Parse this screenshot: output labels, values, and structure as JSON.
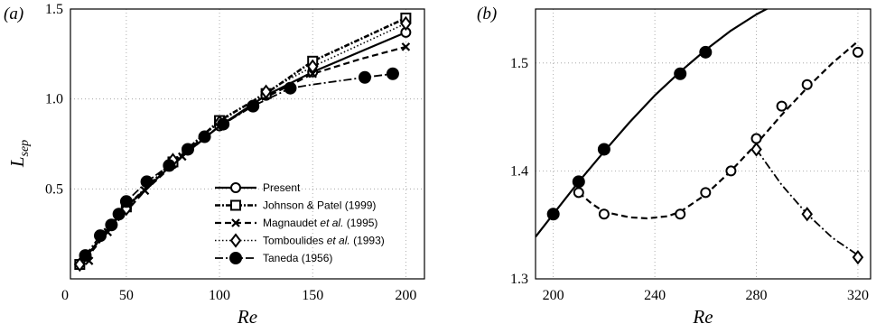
{
  "chart_data": [
    {
      "type": "line",
      "panel_label": "(a)",
      "xlabel": "Re",
      "ylabel": "L",
      "ylabel_sub": "sep",
      "xlim": [
        20,
        210
      ],
      "ylim": [
        0,
        1.5
      ],
      "xticks": [
        0,
        50,
        100,
        150,
        200
      ],
      "yticks": [
        0.5,
        1.0,
        1.5
      ],
      "ytick_labels": [
        "0.5",
        "1.0",
        "1.5"
      ],
      "grid": true,
      "legend_position": "lower-right",
      "series": [
        {
          "name": "Present",
          "style": "solid",
          "marker": "open-circle",
          "x": [
            25,
            50,
            75,
            100,
            125,
            150,
            200
          ],
          "y": [
            0.08,
            0.4,
            0.64,
            0.85,
            1.02,
            1.15,
            1.37
          ],
          "curve_x": [
            25,
            50,
            75,
            100,
            125,
            150,
            175,
            200
          ],
          "curve_y": [
            0.08,
            0.4,
            0.64,
            0.85,
            1.02,
            1.15,
            1.26,
            1.37
          ]
        },
        {
          "name": "Johnson & Patel (1999)",
          "style": "dashdot-heavy",
          "marker": "open-square",
          "x": [
            25,
            50,
            75,
            100,
            125,
            150,
            200
          ],
          "y": [
            0.08,
            0.4,
            0.65,
            0.88,
            1.03,
            1.21,
            1.45
          ],
          "curve_x": [
            25,
            50,
            75,
            100,
            125,
            150,
            175,
            200
          ],
          "curve_y": [
            0.08,
            0.4,
            0.65,
            0.88,
            1.03,
            1.21,
            1.33,
            1.45
          ]
        },
        {
          "name": "Magnaudet et al. (1995)",
          "style": "dashed",
          "marker": "x",
          "x": [
            30,
            40,
            60,
            80,
            100,
            150,
            200
          ],
          "y": [
            0.1,
            0.26,
            0.49,
            0.68,
            0.85,
            1.14,
            1.29
          ],
          "curve_x": [
            25,
            40,
            60,
            80,
            100,
            125,
            150,
            175,
            200
          ],
          "curve_y": [
            0.07,
            0.26,
            0.49,
            0.68,
            0.85,
            1.01,
            1.14,
            1.22,
            1.29
          ]
        },
        {
          "name": "Tomboulides et al. (1993)",
          "style": "dotted",
          "marker": "open-diamond",
          "x": [
            25,
            50,
            75,
            100,
            125,
            150,
            200
          ],
          "y": [
            0.08,
            0.39,
            0.66,
            0.87,
            1.04,
            1.18,
            1.42
          ],
          "curve_x": [
            25,
            50,
            75,
            100,
            125,
            150,
            175,
            200
          ],
          "curve_y": [
            0.08,
            0.39,
            0.66,
            0.87,
            1.04,
            1.18,
            1.3,
            1.42
          ]
        },
        {
          "name": "Taneda (1956)",
          "style": "dashdot",
          "marker": "filled-circle",
          "x": [
            28,
            36,
            42,
            46,
            50,
            61,
            73,
            83,
            92,
            102,
            118,
            138,
            178,
            193
          ],
          "y": [
            0.13,
            0.24,
            0.3,
            0.36,
            0.43,
            0.54,
            0.63,
            0.72,
            0.79,
            0.86,
            0.96,
            1.06,
            1.12,
            1.14
          ],
          "curve_x": [
            28,
            36,
            42,
            46,
            50,
            61,
            73,
            83,
            92,
            102,
            118,
            138,
            150,
            178,
            193
          ],
          "curve_y": [
            0.13,
            0.24,
            0.3,
            0.36,
            0.43,
            0.54,
            0.63,
            0.72,
            0.79,
            0.86,
            0.96,
            1.06,
            1.08,
            1.12,
            1.14
          ]
        }
      ]
    },
    {
      "type": "line",
      "panel_label": "(b)",
      "xlabel": "Re",
      "xlim": [
        193,
        325
      ],
      "ylim": [
        1.3,
        1.55
      ],
      "xticks": [
        200,
        240,
        280,
        320
      ],
      "yticks": [
        1.3,
        1.4,
        1.5
      ],
      "ytick_labels": [
        "1.3",
        "1.4",
        "1.5"
      ],
      "grid": true,
      "series": [
        {
          "style": "solid",
          "marker": "filled-circle",
          "x": [
            200,
            210,
            220,
            250,
            260
          ],
          "y": [
            1.36,
            1.39,
            1.42,
            1.49,
            1.51
          ],
          "curve_x": [
            193,
            200,
            210,
            220,
            230,
            240,
            250,
            260,
            270,
            280,
            288
          ],
          "curve_y": [
            1.339,
            1.36,
            1.39,
            1.418,
            1.445,
            1.47,
            1.492,
            1.512,
            1.53,
            1.545,
            1.555
          ]
        },
        {
          "style": "dashed",
          "marker": "open-circle",
          "x": [
            210,
            220,
            250,
            260,
            270,
            280,
            290,
            300,
            320
          ],
          "y": [
            1.38,
            1.36,
            1.36,
            1.38,
            1.4,
            1.43,
            1.46,
            1.48,
            1.51
          ],
          "curve_x": [
            210,
            215,
            220,
            230,
            237,
            245,
            250,
            260,
            270,
            280,
            290,
            300,
            310,
            320
          ],
          "curve_y": [
            1.38,
            1.37,
            1.362,
            1.357,
            1.356,
            1.358,
            1.362,
            1.378,
            1.4,
            1.425,
            1.452,
            1.477,
            1.5,
            1.52
          ]
        },
        {
          "style": "dashdot",
          "marker": "open-diamond",
          "x": [
            280,
            300,
            320
          ],
          "y": [
            1.42,
            1.36,
            1.32
          ],
          "curve_x": [
            280,
            290,
            300,
            310,
            320
          ],
          "curve_y": [
            1.42,
            1.387,
            1.36,
            1.338,
            1.322
          ]
        }
      ]
    }
  ]
}
